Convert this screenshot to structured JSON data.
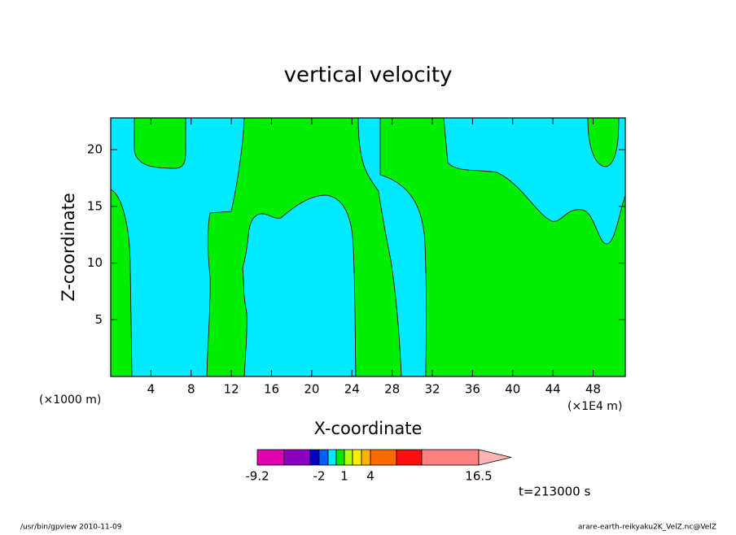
{
  "chart_data": {
    "type": "contour",
    "title": "vertical velocity",
    "xlabel": "X-coordinate",
    "ylabel": "Z-coordinate",
    "x_unit_left": "(×1000 m)",
    "x_unit_right": "(×1E4 m)",
    "xlim": [
      0,
      51.2
    ],
    "ylim": [
      0,
      22.8
    ],
    "xticks": [
      4,
      8,
      12,
      16,
      20,
      24,
      28,
      32,
      36,
      40,
      44,
      48
    ],
    "yticks": [
      5,
      10,
      15,
      20
    ],
    "colorbar": {
      "colors": [
        "#e000b0",
        "#8a00c0",
        "#0000c8",
        "#0060ff",
        "#00e8ff",
        "#00e800",
        "#b0ff00",
        "#ffee00",
        "#ffb400",
        "#ff6a00",
        "#ff1010",
        "#ff8080",
        "#ffb4b4"
      ],
      "labels": [
        "-9.2",
        null,
        null,
        "-2",
        null,
        null,
        "1",
        null,
        null,
        "4",
        null,
        null,
        "16.5"
      ]
    },
    "time_label": "t=213000 s",
    "footer_left": "/usr/bin/gpview   2010-11-09",
    "footer_right": "arare-earth-reikyaku2K_VelZ.nc@VelZ"
  }
}
